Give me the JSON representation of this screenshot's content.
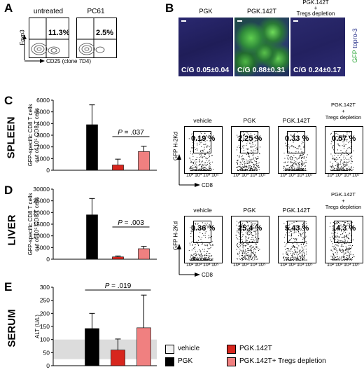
{
  "panels": {
    "A": {
      "label": "A",
      "plots": [
        {
          "title": "untreated",
          "pct": "11.3%"
        },
        {
          "title": "PC61",
          "pct": "2.5%"
        }
      ],
      "ylabel": "Foxp3",
      "xlabel": "CD25 (clone 7D4)"
    },
    "B": {
      "label": "B",
      "images": [
        {
          "title": "PGK",
          "cg": "C/G 0.05±0.04"
        },
        {
          "title": "PGK.142T",
          "cg": "C/G 0.88±0.31"
        },
        {
          "title": "PGK.142T\n+\nTregs depletion",
          "cg": "C/G 0.24±0.17"
        }
      ],
      "side_gfp": "GFP",
      "side_topro": "topro-3"
    },
    "C": {
      "label": "C",
      "organ": "SPLEEN",
      "pvalue": "P = .037"
    },
    "D": {
      "label": "D",
      "organ": "LIVER",
      "pvalue": "P = .003"
    },
    "E": {
      "label": "E",
      "organ": "SERUM",
      "pvalue": "P = .019"
    },
    "facs_C": {
      "plots": [
        {
          "title": "vehicle",
          "pct": "0.19 %"
        },
        {
          "title": "PGK",
          "pct": "2.25 %"
        },
        {
          "title": "PGK.142T",
          "pct": "0.33 %"
        },
        {
          "title": "PGK.142T\n+\nTregs depletion",
          "pct": "0.57 %"
        }
      ],
      "ylabel": "GFP H-2Kd",
      "xlabel": "CD8",
      "ticks": [
        "10²",
        "10³",
        "10⁴",
        "10⁵"
      ]
    },
    "facs_D": {
      "plots": [
        {
          "title": "vehicle",
          "pct": "0.36 %"
        },
        {
          "title": "PGK",
          "pct": "25.4 %"
        },
        {
          "title": "PGK.142T",
          "pct": "5.43 %"
        },
        {
          "title": "PGK.142T\n+\nTregs depletion",
          "pct": "14.3 %"
        }
      ],
      "ylabel": "GFP H-2Kd",
      "xlabel": "CD8",
      "ticks": [
        "10²",
        "10³",
        "10⁴",
        "10⁵"
      ]
    }
  },
  "legend": {
    "items": [
      {
        "label": "vehicle",
        "color": "#f2f2f2"
      },
      {
        "label": "PGK.142T",
        "color": "#d7261e"
      },
      {
        "label": "PGK",
        "color": "#000000"
      },
      {
        "label": "PGK.142T+ Tregs depletion",
        "color": "#f08080"
      }
    ]
  },
  "chart_data": [
    {
      "type": "bar",
      "panel": "C",
      "categories": [
        "vehicle",
        "PGK",
        "PGK.142T",
        "PGK.142T+ Tregs depletion"
      ],
      "values": [
        0,
        3900,
        450,
        1600
      ],
      "errors": [
        0,
        1700,
        500,
        450
      ],
      "colors": [
        "#f2f2f2",
        "#000000",
        "#d7261e",
        "#f08080"
      ],
      "ylabel": "GFP-specific CD8 T cells out of 10⁵ CD8 T cells",
      "ylim": [
        0,
        6000
      ],
      "yticks": [
        0,
        1000,
        2000,
        3000,
        4000,
        5000,
        6000
      ],
      "bracket": [
        2,
        3
      ]
    },
    {
      "type": "bar",
      "panel": "D",
      "categories": [
        "vehicle",
        "PGK",
        "PGK.142T",
        "PGK.142T+ Tregs depletion"
      ],
      "values": [
        0,
        19000,
        1000,
        4500
      ],
      "errors": [
        0,
        7000,
        400,
        1000
      ],
      "colors": [
        "#f2f2f2",
        "#000000",
        "#d7261e",
        "#f08080"
      ],
      "ylabel": "GFP-specific CD8 T cells out of 10⁵ CD8 T cells",
      "ylim": [
        0,
        30000
      ],
      "yticks": [
        0,
        5000,
        10000,
        15000,
        20000,
        25000,
        30000
      ],
      "bracket": [
        2,
        3
      ]
    },
    {
      "type": "bar",
      "panel": "E",
      "categories": [
        "vehicle",
        "PGK",
        "PGK.142T",
        "PGK.142T+ Tregs depletion"
      ],
      "values": [
        0,
        142,
        60,
        145
      ],
      "errors": [
        0,
        58,
        42,
        125
      ],
      "colors": [
        "#f2f2f2",
        "#000000",
        "#d7261e",
        "#f08080"
      ],
      "ylabel": "ALT (U/L)",
      "ylim": [
        0,
        300
      ],
      "yticks": [
        0,
        50,
        100,
        150,
        200,
        250,
        300
      ],
      "normal_band": [
        25,
        100
      ],
      "bracket": [
        1,
        3
      ]
    }
  ]
}
